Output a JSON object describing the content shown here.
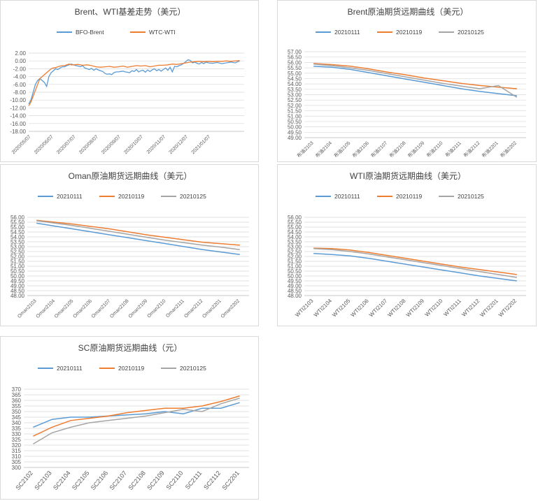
{
  "chart_data": [
    {
      "type": "line",
      "title": "Brent、WTI基差走势（美元）",
      "colors": [
        "#5b9bd5",
        "#ed7d31"
      ],
      "x_labels": [
        "2020/05/07",
        "2020/06/07",
        "2020/07/07",
        "2020/08/07",
        "2020/09/07",
        "2020/10/07",
        "2020/11/07",
        "2020/12/07",
        "2021/01/07"
      ],
      "ylim": [
        -18,
        2
      ],
      "y_ticks": [
        "2.00",
        "0.00",
        "-2.00",
        "-4.00",
        "-6.00",
        "-8.00",
        "-10.00",
        "-12.00",
        "-14.00",
        "-16.00",
        "-18.00"
      ],
      "y_tick_values": [
        2,
        0,
        -2,
        -4,
        -6,
        -8,
        -10,
        -12,
        -14,
        -16,
        -18
      ],
      "grid": true,
      "legend": "top",
      "series": [
        {
          "name": "BFO-Brent",
          "color": "#5b9bd5",
          "x": [
            0,
            0.1,
            0.2,
            0.3,
            0.4,
            0.5,
            0.6,
            0.7,
            0.8,
            0.9,
            1.0,
            1.1,
            1.2,
            1.3,
            1.4,
            1.5,
            1.6,
            1.7,
            1.8,
            1.9,
            2.0,
            2.1,
            2.2,
            2.3,
            2.4,
            2.5,
            2.6,
            2.7,
            2.8,
            2.9,
            3.0,
            3.1,
            3.2,
            3.3,
            3.4,
            3.5,
            3.6,
            3.7,
            3.8,
            3.9,
            4.0,
            4.1,
            4.2,
            4.3,
            4.4,
            4.5,
            4.6,
            4.7,
            4.8,
            4.9,
            5.0,
            5.1,
            5.2,
            5.3,
            5.4,
            5.5,
            5.6,
            5.7,
            5.8,
            5.9,
            6.0,
            6.1,
            6.2,
            6.3,
            6.4,
            6.5,
            6.6,
            6.7,
            6.8,
            6.9,
            7.0,
            7.1,
            7.2,
            7.3,
            7.4,
            7.5,
            7.6,
            7.7,
            7.8,
            7.9,
            8.0,
            8.2,
            8.4,
            8.6,
            8.8,
            9.0,
            9.2,
            9.4
          ],
          "values": [
            -11,
            -10,
            -8,
            -6,
            -5,
            -4.5,
            -5,
            -5.5,
            -6.5,
            -4,
            -3,
            -2.5,
            -2,
            -2.2,
            -1.8,
            -1.5,
            -1.5,
            -1.2,
            -1,
            -0.8,
            -1,
            -1.2,
            -1.3,
            -1.5,
            -1.2,
            -1.8,
            -2,
            -2.2,
            -1.9,
            -2.4,
            -2,
            -2.3,
            -2.5,
            -2.7,
            -3.2,
            -3.4,
            -3.3,
            -3.5,
            -3.0,
            -2.8,
            -2.8,
            -2.7,
            -2.6,
            -2.8,
            -2.9,
            -3.0,
            -2.5,
            -2.7,
            -2.2,
            -2.8,
            -2.5,
            -2.4,
            -2.9,
            -2.3,
            -2.7,
            -2.3,
            -2,
            -2.5,
            -2.2,
            -2.6,
            -2.2,
            -1.8,
            -2.4,
            -1.6,
            -2.8,
            -1.4,
            -1.5,
            -1.2,
            -1.0,
            -0.6,
            -0.2,
            0.3,
            0.1,
            -0.5,
            -0.3,
            -0.6,
            -0.8,
            -0.4,
            -0.7,
            -0.3,
            -0.5,
            -0.6,
            -0.4,
            -0.7,
            -0.5,
            -0.3,
            -0.5,
            0.0
          ]
        },
        {
          "name": "WTC-WTI",
          "color": "#ed7d31",
          "x": [
            0,
            0.1,
            0.2,
            0.3,
            0.4,
            0.5,
            0.6,
            0.7,
            0.8,
            0.9,
            1.0,
            1.1,
            1.2,
            1.3,
            1.4,
            1.5,
            1.6,
            1.7,
            1.8,
            1.9,
            2.0,
            2.2,
            2.4,
            2.6,
            2.8,
            3.0,
            3.2,
            3.4,
            3.6,
            3.8,
            4.0,
            4.2,
            4.4,
            4.6,
            4.8,
            5.0,
            5.2,
            5.4,
            5.6,
            5.8,
            6.0,
            6.2,
            6.4,
            6.6,
            6.8,
            7.0,
            7.2,
            7.4,
            7.6,
            7.8,
            8.0,
            8.2,
            8.4,
            8.6,
            8.8,
            9.0,
            9.2,
            9.4
          ],
          "values": [
            -11.5,
            -10.5,
            -9,
            -7.5,
            -6,
            -4.5,
            -4,
            -3.5,
            -3,
            -2.5,
            -2,
            -1.8,
            -1.7,
            -1.5,
            -1.3,
            -1.2,
            -1.2,
            -1.0,
            -0.8,
            -1.0,
            -1.0,
            -0.9,
            -1.1,
            -1.0,
            -1.2,
            -1.5,
            -1.6,
            -1.5,
            -1.4,
            -1.6,
            -1.5,
            -1.3,
            -1.6,
            -1.4,
            -1.2,
            -1.3,
            -1.2,
            -1.5,
            -1.3,
            -1.1,
            -1.1,
            -1.0,
            -0.8,
            -0.9,
            -0.7,
            -0.5,
            -0.3,
            -0.2,
            -0.1,
            -0.2,
            -0.1,
            -0.2,
            -0.1,
            -0.1,
            0.0,
            -0.1,
            0.0,
            0.1
          ]
        }
      ]
    },
    {
      "type": "line",
      "title": "Brent原油期货远期曲线（美元）",
      "categories": [
        "布油2103",
        "布油2104",
        "布油2105",
        "布油2106",
        "布油2107",
        "布油2108",
        "布油2109",
        "布油2110",
        "布油2111",
        "布油2112",
        "布油2201",
        "布油2202"
      ],
      "ylim": [
        49,
        57
      ],
      "y_ticks": [
        "57.00",
        "56.50",
        "56.00",
        "55.50",
        "55.00",
        "54.50",
        "54.00",
        "53.50",
        "53.00",
        "52.50",
        "52.00",
        "51.50",
        "51.00",
        "50.50",
        "50.00",
        "49.50",
        "49.00"
      ],
      "y_tick_values": [
        57,
        56.5,
        56,
        55.5,
        55,
        54.5,
        54,
        53.5,
        53,
        52.5,
        52,
        51.5,
        51,
        50.5,
        50,
        49.5,
        49
      ],
      "grid": true,
      "legend": "top",
      "series": [
        {
          "name": "20210111",
          "color": "#5b9bd5",
          "values": [
            55.65,
            55.55,
            55.35,
            55.05,
            54.75,
            54.45,
            54.15,
            53.85,
            53.55,
            53.3,
            53.1,
            52.9
          ]
        },
        {
          "name": "20210119",
          "color": "#ed7d31",
          "values": [
            55.9,
            55.8,
            55.65,
            55.4,
            55.1,
            54.85,
            54.55,
            54.3,
            54.05,
            53.85,
            53.7,
            53.55
          ]
        },
        {
          "name": "20210125",
          "color": "#a5a5a5",
          "values": [
            55.85,
            55.7,
            55.5,
            55.25,
            54.95,
            54.65,
            54.35,
            54.05,
            53.8,
            53.55,
            53.85,
            52.75
          ]
        }
      ]
    },
    {
      "type": "line",
      "title": "Oman原油期货远期曲线（美元）",
      "categories": [
        "Oman2103",
        "Oman2104",
        "Oman2105",
        "Oman2106",
        "Oman2107",
        "Oman2108",
        "Oman2109",
        "Oman2110",
        "Oman2111",
        "Oman2112",
        "Oman2201",
        "Oman2202"
      ],
      "ylim": [
        48,
        56
      ],
      "y_ticks": [
        "56.00",
        "55.50",
        "55.00",
        "54.50",
        "54.00",
        "53.50",
        "53.00",
        "52.50",
        "52.00",
        "51.50",
        "51.00",
        "50.50",
        "50.00",
        "49.50",
        "49.00",
        "48.50",
        "48.00"
      ],
      "y_tick_values": [
        56,
        55.5,
        55,
        54.5,
        54,
        53.5,
        53,
        52.5,
        52,
        51.5,
        51,
        50.5,
        50,
        49.5,
        49,
        48.5,
        48
      ],
      "grid": true,
      "legend": "top",
      "series": [
        {
          "name": "20210111",
          "color": "#5b9bd5",
          "values": [
            55.4,
            55.1,
            54.8,
            54.5,
            54.2,
            53.9,
            53.6,
            53.3,
            53.0,
            52.7,
            52.45,
            52.2
          ]
        },
        {
          "name": "20210119",
          "color": "#ed7d31",
          "values": [
            55.7,
            55.5,
            55.3,
            55.05,
            54.8,
            54.5,
            54.2,
            53.95,
            53.7,
            53.45,
            53.3,
            53.15
          ]
        },
        {
          "name": "20210125",
          "color": "#a5a5a5",
          "values": [
            55.65,
            55.4,
            55.15,
            54.85,
            54.55,
            54.25,
            53.95,
            53.65,
            53.4,
            53.15,
            52.95,
            52.7
          ]
        }
      ]
    },
    {
      "type": "line",
      "title": "WTI原油期货远期曲线（美元）",
      "categories": [
        "WTI2103",
        "WTI2104",
        "WTI2105",
        "WTI2106",
        "WTI2107",
        "WTI2108",
        "WTI2109",
        "WTI2110",
        "WTI2111",
        "WTI2112",
        "WTI2201",
        "WTI2202"
      ],
      "ylim": [
        48,
        56
      ],
      "y_ticks": [
        "56.00",
        "55.50",
        "55.00",
        "54.50",
        "54.00",
        "53.50",
        "53.00",
        "52.50",
        "52.00",
        "51.50",
        "51.00",
        "50.50",
        "50.00",
        "49.50",
        "49.00",
        "48.50",
        "48.00"
      ],
      "y_tick_values": [
        56,
        55.5,
        55,
        54.5,
        54,
        53.5,
        53,
        52.5,
        52,
        51.5,
        51,
        50.5,
        50,
        49.5,
        49,
        48.5,
        48
      ],
      "grid": true,
      "legend": "top",
      "series": [
        {
          "name": "20210111",
          "color": "#5b9bd5",
          "values": [
            52.3,
            52.2,
            52.05,
            51.8,
            51.5,
            51.2,
            50.9,
            50.6,
            50.3,
            50.0,
            49.75,
            49.5
          ]
        },
        {
          "name": "20210119",
          "color": "#ed7d31",
          "values": [
            52.85,
            52.8,
            52.65,
            52.4,
            52.1,
            51.8,
            51.5,
            51.2,
            50.9,
            50.65,
            50.4,
            50.15
          ]
        },
        {
          "name": "20210125",
          "color": "#a5a5a5",
          "values": [
            52.8,
            52.7,
            52.5,
            52.25,
            51.95,
            51.65,
            51.35,
            51.05,
            50.75,
            50.45,
            50.15,
            49.85
          ]
        }
      ]
    },
    {
      "type": "line",
      "title": "SC原油期货远期曲线（元）",
      "categories": [
        "SC2102",
        "SC2103",
        "SC2104",
        "SC2105",
        "SC2106",
        "SC2107",
        "SC2108",
        "SC2109",
        "SC2110",
        "SC2111",
        "SC2112",
        "SC2201"
      ],
      "ylim": [
        300,
        370
      ],
      "y_ticks": [
        "370",
        "365",
        "360",
        "355",
        "350",
        "345",
        "340",
        "335",
        "330",
        "325",
        "320",
        "315",
        "310",
        "305",
        "300"
      ],
      "y_tick_values": [
        370,
        365,
        360,
        355,
        350,
        345,
        340,
        335,
        330,
        325,
        320,
        315,
        310,
        305,
        300
      ],
      "grid": true,
      "legend": "top",
      "series": [
        {
          "name": "20210111",
          "color": "#5b9bd5",
          "values": [
            336,
            343,
            345,
            345,
            346,
            347,
            348,
            350,
            348,
            353,
            353,
            358
          ]
        },
        {
          "name": "20210119",
          "color": "#ed7d31",
          "values": [
            328,
            336,
            342,
            344,
            346,
            349,
            351,
            353,
            353,
            355,
            359,
            364
          ]
        },
        {
          "name": "20210125",
          "color": "#a5a5a5",
          "values": [
            321,
            331,
            336,
            340,
            342,
            344,
            346,
            349,
            352,
            350,
            357,
            362
          ]
        }
      ]
    }
  ]
}
